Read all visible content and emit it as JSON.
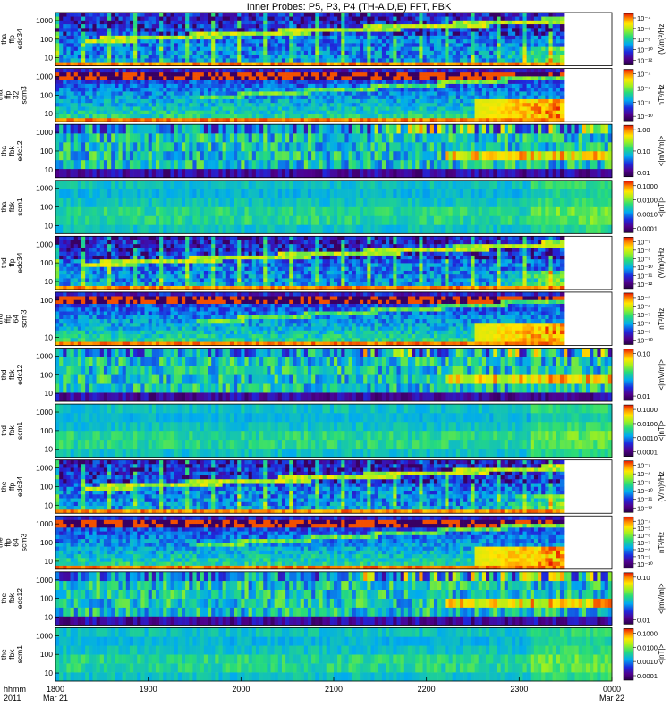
{
  "chart_data": {
    "type": "heatmap",
    "title": "Inner Probes: P5, P3, P4 (TH-A,D,E) FFT, FBK",
    "xaxis": {
      "ticks": [
        {
          "label": "1800",
          "sub": "Mar 21"
        },
        {
          "label": "1900",
          "sub": ""
        },
        {
          "label": "2000",
          "sub": ""
        },
        {
          "label": "2100",
          "sub": ""
        },
        {
          "label": "2200",
          "sub": ""
        },
        {
          "label": "2300",
          "sub": ""
        },
        {
          "label": "0000",
          "sub": "Mar 22"
        }
      ],
      "left_label_1": "hhmm",
      "left_label_2": "2011"
    },
    "panels": [
      {
        "label": [
          "tha",
          "ffp",
          "edc34"
        ],
        "kind": "fft_e",
        "yticks": [
          "1000",
          "100",
          "10"
        ],
        "unit": "(V/m)²/Hz",
        "cticks": [
          "10⁻⁴",
          "10⁻⁶",
          "10⁻⁸",
          "10⁻¹⁰",
          "10⁻¹²"
        ]
      },
      {
        "label": [
          "tha",
          "ffp",
          "32",
          "scm3"
        ],
        "kind": "fft_b",
        "yticks": [
          "1000",
          "100",
          "10"
        ],
        "unit": "nT²/Hz",
        "cticks": [
          "10⁻⁴",
          "10⁻⁶",
          "10⁻⁸",
          "10⁻¹⁰"
        ]
      },
      {
        "label": [
          "tha",
          "fbk",
          "edc12"
        ],
        "kind": "fbk_e",
        "yticks": [
          "1000",
          "100",
          "10"
        ],
        "unit": "<|mV/m|>",
        "cticks": [
          "1.00",
          "0.10",
          "0.01"
        ]
      },
      {
        "label": [
          "tha",
          "fbk",
          "scm1"
        ],
        "kind": "fbk_b",
        "yticks": [
          "1000",
          "100",
          "10"
        ],
        "unit": "<|nT|>",
        "cticks": [
          "0.1000",
          "0.0100",
          "0.0010",
          "0.0001"
        ]
      },
      {
        "label": [
          "thd",
          "ffp",
          "edc34"
        ],
        "kind": "fft_e",
        "yticks": [
          "1000",
          "100",
          "10"
        ],
        "unit": "(V/m)²/Hz",
        "cticks": [
          "10⁻⁷",
          "10⁻⁸",
          "10⁻⁹",
          "10⁻¹⁰",
          "10⁻¹¹",
          "10⁻¹²"
        ]
      },
      {
        "label": [
          "thd",
          "ffp",
          "64",
          "scm3"
        ],
        "kind": "fft_b",
        "yticks": [
          "100",
          "10"
        ],
        "unit": "nT²/Hz",
        "cticks": [
          "10⁻⁵",
          "10⁻⁶",
          "10⁻⁷",
          "10⁻⁸",
          "10⁻⁹",
          "10⁻¹⁰"
        ]
      },
      {
        "label": [
          "thd",
          "fbk",
          "edc12"
        ],
        "kind": "fbk_e",
        "yticks": [
          "1000",
          "100",
          "10"
        ],
        "unit": "<|mV/m|>",
        "cticks": [
          "0.10",
          "0.01"
        ]
      },
      {
        "label": [
          "thd",
          "fbk",
          "scm1"
        ],
        "kind": "fbk_b",
        "yticks": [
          "1000",
          "100",
          "10"
        ],
        "unit": "<|nT|>",
        "cticks": [
          "0.1000",
          "0.0100",
          "0.0010",
          "0.0001"
        ]
      },
      {
        "label": [
          "the",
          "ffp",
          "edc34"
        ],
        "kind": "fft_e",
        "yticks": [
          "1000",
          "100",
          "10"
        ],
        "unit": "(V/m)²/Hz",
        "cticks": [
          "10⁻⁷",
          "10⁻⁸",
          "10⁻⁹",
          "10⁻¹⁰",
          "10⁻¹¹",
          "10⁻¹²"
        ]
      },
      {
        "label": [
          "the",
          "ffp",
          "64",
          "scm3"
        ],
        "kind": "fft_b",
        "yticks": [
          "1000",
          "100",
          "10"
        ],
        "unit": "nT²/Hz",
        "cticks": [
          "10⁻⁴",
          "10⁻⁵",
          "10⁻⁶",
          "10⁻⁷",
          "10⁻⁸",
          "10⁻⁹",
          "10⁻¹⁰"
        ]
      },
      {
        "label": [
          "the",
          "fbk",
          "edc12"
        ],
        "kind": "fbk_e",
        "yticks": [
          "1000",
          "100",
          "10"
        ],
        "unit": "<|mV/m|>",
        "cticks": [
          "0.10",
          "0.01"
        ]
      },
      {
        "label": [
          "the",
          "fbk",
          "scm1"
        ],
        "kind": "fbk_b",
        "yticks": [
          "1000",
          "100",
          "10"
        ],
        "unit": "<|nT|>",
        "cticks": [
          "0.1000",
          "0.0100",
          "0.0010",
          "0.0001"
        ]
      }
    ]
  }
}
